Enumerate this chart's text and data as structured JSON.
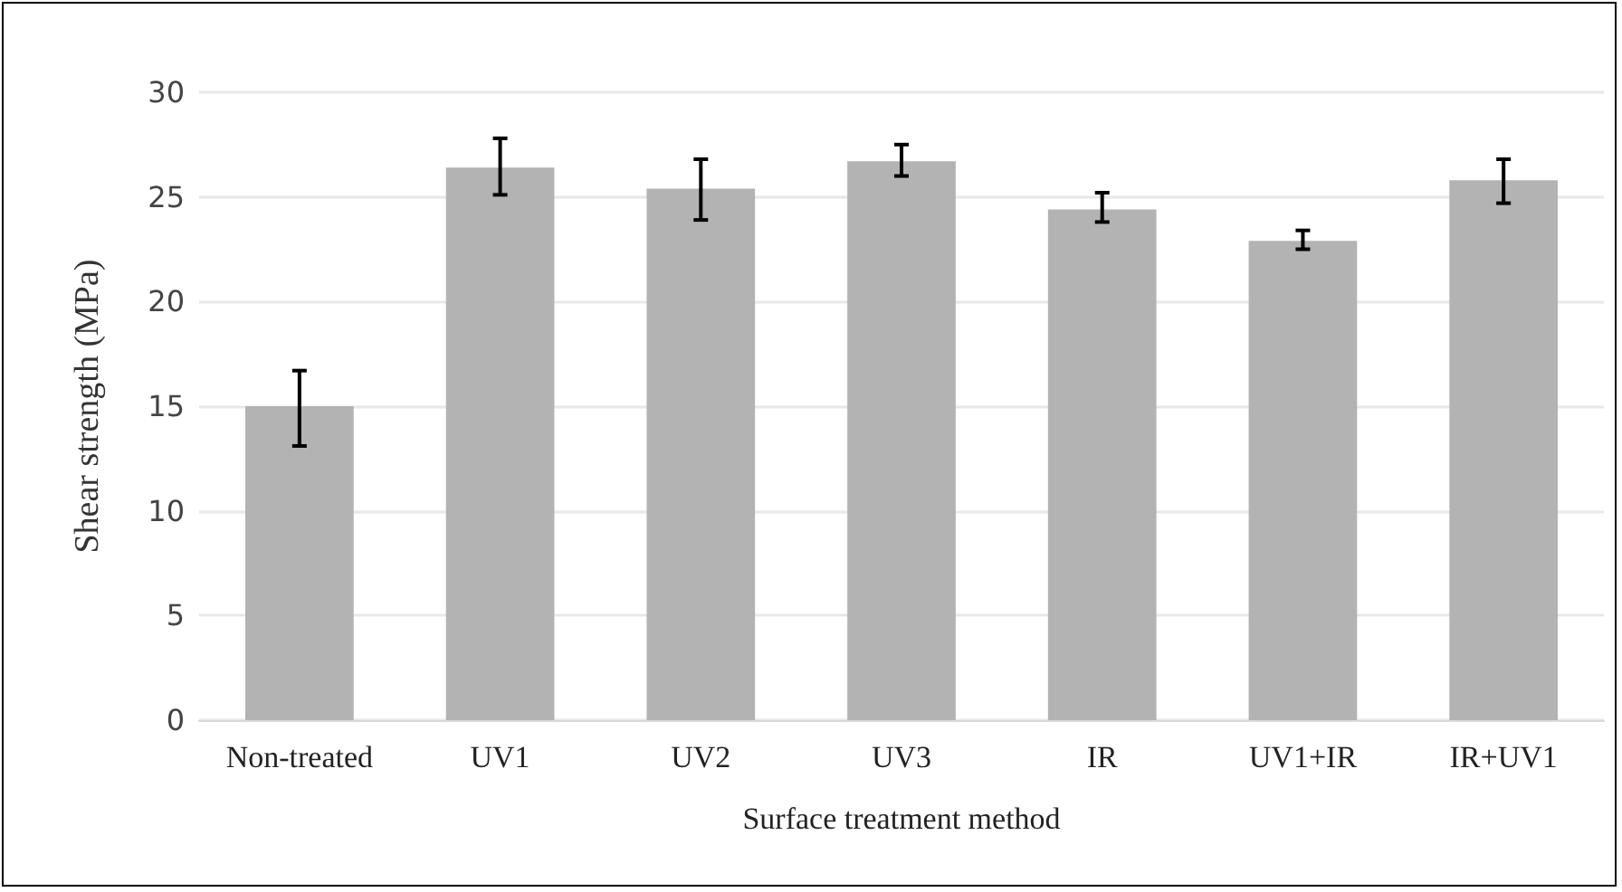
{
  "chart_data": {
    "type": "bar",
    "xlabel": "Surface treatment method",
    "ylabel": "Shear strength (MPa)",
    "categories": [
      "Non-treated",
      "UV1",
      "UV2",
      "UV3",
      "IR",
      "UV1+IR",
      "IR+UV1"
    ],
    "values": [
      15,
      26.4,
      25.4,
      26.7,
      24.4,
      22.9,
      25.8
    ],
    "errors": [
      [
        13.1,
        16.7
      ],
      [
        25.1,
        27.8
      ],
      [
        23.9,
        26.8
      ],
      [
        26.0,
        27.5
      ],
      [
        23.8,
        25.2
      ],
      [
        22.5,
        23.4
      ],
      [
        24.7,
        26.8
      ]
    ],
    "color": "#b3b3b3",
    "ylim": [
      0,
      30
    ],
    "yticks": [
      0,
      5,
      10,
      15,
      20,
      25,
      30
    ],
    "grid": "y"
  }
}
